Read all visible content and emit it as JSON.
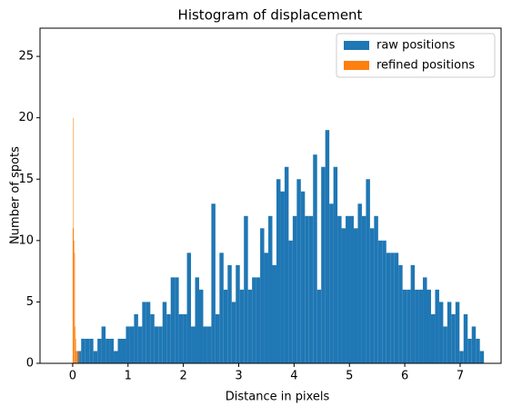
{
  "chart_data": {
    "type": "histogram",
    "title": "Histogram of displacement",
    "x_label": "Distance in pixels",
    "y_label": "Number of spots",
    "xlim": [
      -0.59,
      7.74
    ],
    "ylim": [
      0,
      27.3
    ],
    "xticks": [
      0,
      1,
      2,
      3,
      4,
      5,
      6,
      7
    ],
    "yticks": [
      0,
      5,
      10,
      15,
      20,
      25
    ],
    "legend": "upper right",
    "series": [
      {
        "name": "raw positions",
        "color": "#1f77b4",
        "bins": [
          0.08,
          0.1535,
          0.227,
          0.3005,
          0.374,
          0.4475,
          0.521,
          0.5945,
          0.668,
          0.7415,
          0.815,
          0.8885,
          0.962,
          1.0355,
          1.109,
          1.1825,
          1.256,
          1.3295,
          1.403,
          1.4765,
          1.55,
          1.6235,
          1.697,
          1.7705,
          1.844,
          1.9175,
          1.991,
          2.0645,
          2.138,
          2.2115,
          2.285,
          2.3585,
          2.432,
          2.5055,
          2.579,
          2.6525,
          2.726,
          2.7995,
          2.873,
          2.9465,
          3.02,
          3.0935,
          3.167,
          3.2405,
          3.314,
          3.3875,
          3.461,
          3.5345,
          3.608,
          3.6815,
          3.755,
          3.8285,
          3.902,
          3.9755,
          4.049,
          4.1225,
          4.196,
          4.2695,
          4.343,
          4.4165,
          4.49,
          4.5635,
          4.637,
          4.7105,
          4.784,
          4.8575,
          4.931,
          5.0045,
          5.078,
          5.1515,
          5.225,
          5.2985,
          5.372,
          5.4455,
          5.519,
          5.5925,
          5.666,
          5.7395,
          5.813,
          5.8865,
          5.96,
          6.0335,
          6.107,
          6.1805,
          6.254,
          6.3275,
          6.401,
          6.4745,
          6.548,
          6.6215,
          6.695,
          6.7685,
          6.842,
          6.9155,
          6.989,
          7.0625,
          7.136,
          7.2095,
          7.283,
          7.3565,
          7.43
        ],
        "values": [
          1,
          2,
          2,
          2,
          1,
          2,
          3,
          2,
          2,
          1,
          2,
          2,
          3,
          3,
          4,
          3,
          5,
          5,
          4,
          3,
          3,
          5,
          4,
          7,
          7,
          4,
          4,
          9,
          3,
          7,
          6,
          3,
          3,
          13,
          4,
          9,
          6,
          8,
          5,
          8,
          6,
          12,
          6,
          7,
          7,
          11,
          9,
          12,
          8,
          15,
          14,
          16,
          10,
          12,
          15,
          14,
          12,
          12,
          17,
          6,
          16,
          19,
          13,
          16,
          12,
          11,
          12,
          12,
          11,
          13,
          12,
          15,
          11,
          12,
          10,
          10,
          9,
          9,
          9,
          8,
          6,
          6,
          8,
          6,
          6,
          7,
          6,
          4,
          6,
          5,
          3,
          5,
          4,
          5,
          1,
          4,
          2,
          3,
          2,
          1
        ]
      },
      {
        "name": "refined positions",
        "color": "#ff7f0e",
        "bins": [
          0,
          0.01,
          0.02,
          0.03,
          0.04,
          0.05,
          0.06,
          0.07,
          0.08,
          0.09,
          0.1,
          0.11,
          0.12
        ],
        "values": [
          11,
          20,
          10,
          9,
          3,
          2,
          1,
          1,
          0,
          1,
          0,
          1
        ]
      }
    ]
  }
}
